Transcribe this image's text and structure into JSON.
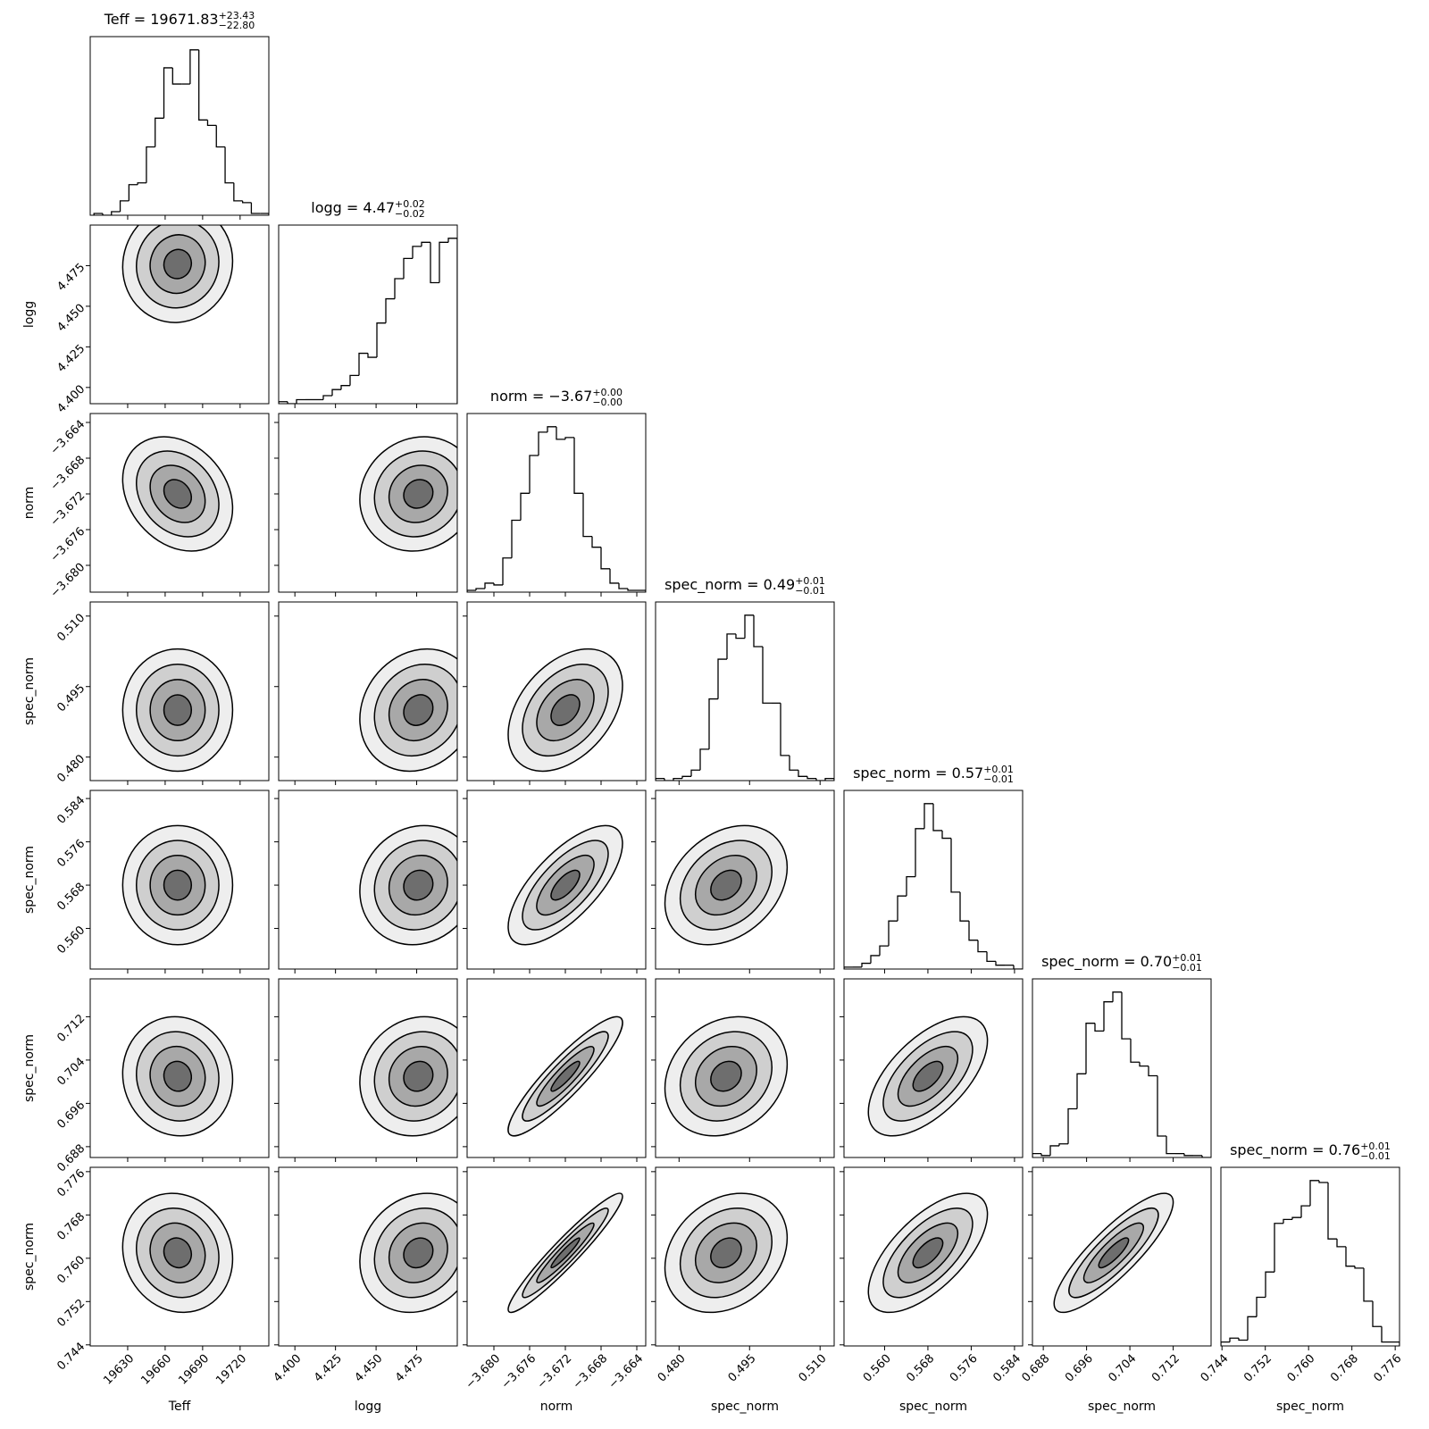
{
  "chart_data": {
    "type": "corner",
    "parameters": [
      {
        "label": "Teff",
        "title": {
          "text": "Teff = 19671.83",
          "upper": "+23.43",
          "lower": "−22.80"
        },
        "xlim": [
          19600,
          19743
        ],
        "ticks": [
          19630,
          19660,
          19690,
          19720
        ],
        "bins": [
          19603,
          19610,
          19617,
          19624,
          19631,
          19638,
          19645,
          19652,
          19659,
          19666,
          19673,
          19680,
          19687,
          19694,
          19701,
          19708,
          19715,
          19722,
          19729,
          19736,
          19743
        ],
        "counts": [
          1,
          0,
          2,
          8,
          17,
          18,
          38,
          54,
          82,
          73,
          73,
          92,
          53,
          50,
          38,
          18,
          8,
          7,
          1,
          1
        ],
        "center": 19670,
        "spread": 22
      },
      {
        "label": "logg",
        "title": {
          "text": "logg = 4.47",
          "upper": "+0.02",
          "lower": "−0.02"
        },
        "xlim": [
          4.39,
          4.5
        ],
        "ticks": [
          {
            "value": 4.4,
            "label": "4.400"
          },
          4.425,
          {
            "value": 4.45,
            "label": "4.450"
          },
          4.475
        ],
        "bins": [
          4.39,
          4.3955,
          4.401,
          4.4065,
          4.412,
          4.4175,
          4.423,
          4.4285,
          4.434,
          4.4395,
          4.445,
          4.4505,
          4.456,
          4.4615,
          4.467,
          4.4725,
          4.478,
          4.4835,
          4.489,
          4.4945,
          4.5
        ],
        "counts": [
          1,
          0,
          2,
          2,
          2,
          4,
          7,
          9,
          14,
          25,
          23,
          40,
          52,
          62,
          72,
          78,
          80,
          60,
          80,
          82
        ],
        "center": 4.476,
        "spread": 0.018
      },
      {
        "label": "norm",
        "title": {
          "text": "norm = −3.67",
          "upper": "+0.00",
          "lower": "−0.00"
        },
        "xlim": [
          -3.683,
          -3.663
        ],
        "ticks": [
          {
            "value": -3.68,
            "label": "−3.680"
          },
          {
            "value": -3.676,
            "label": "−3.676"
          },
          {
            "value": -3.672,
            "label": "−3.672"
          },
          {
            "value": -3.668,
            "label": "−3.668"
          },
          {
            "value": -3.664,
            "label": "−3.664"
          }
        ],
        "bins": [
          -3.683,
          -3.682,
          -3.681,
          -3.68,
          -3.679,
          -3.678,
          -3.677,
          -3.676,
          -3.675,
          -3.674,
          -3.673,
          -3.672,
          -3.671,
          -3.67,
          -3.669,
          -3.668,
          -3.667,
          -3.666,
          -3.665,
          -3.664,
          -3.663
        ],
        "counts": [
          1,
          2,
          5,
          4,
          19,
          40,
          55,
          76,
          89,
          92,
          85,
          86,
          55,
          31,
          25,
          13,
          5,
          2,
          1,
          1
        ],
        "center": -3.672,
        "spread": 0.0032
      },
      {
        "label": "spec_norm",
        "title": {
          "text": "spec_norm = 0.49",
          "upper": "+0.01",
          "lower": "−0.01"
        },
        "xlim": [
          0.475,
          0.513
        ],
        "ticks": [
          {
            "value": 0.48,
            "label": "0.480"
          },
          0.495,
          {
            "value": 0.51,
            "label": "0.510"
          }
        ],
        "bins": [
          0.475,
          0.4769,
          0.4788,
          0.4807,
          0.4826,
          0.4845,
          0.4864,
          0.4883,
          0.4902,
          0.4921,
          0.494,
          0.4959,
          0.4978,
          0.4997,
          0.5016,
          0.5035,
          0.5054,
          0.5073,
          0.5092,
          0.5111,
          0.513
        ],
        "counts": [
          1,
          0,
          1,
          2,
          5,
          15,
          39,
          58,
          70,
          68,
          79,
          64,
          37,
          37,
          12,
          5,
          2,
          1,
          0,
          1
        ],
        "center": 0.49,
        "spread": 0.0065
      },
      {
        "label": "spec_norm",
        "title": {
          "text": "spec_norm = 0.57",
          "upper": "+0.01",
          "lower": "−0.01"
        },
        "xlim": [
          0.5525,
          0.5855
        ],
        "ticks": [
          {
            "value": 0.56,
            "label": "0.560"
          },
          0.568,
          0.576,
          0.584
        ],
        "bins": [
          0.5525,
          0.55415,
          0.5558,
          0.55745,
          0.5591,
          0.56075,
          0.5624,
          0.56405,
          0.5657,
          0.56735,
          0.569,
          0.57065,
          0.5723,
          0.57395,
          0.5756,
          0.57725,
          0.5789,
          0.58055,
          0.5822,
          0.58385,
          0.5855
        ],
        "counts": [
          1,
          1,
          3,
          7,
          12,
          25,
          38,
          48,
          73,
          86,
          72,
          68,
          40,
          25,
          15,
          9,
          4,
          2,
          2,
          0
        ],
        "center": 0.568,
        "spread": 0.0055
      },
      {
        "label": "spec_norm",
        "title": {
          "text": "spec_norm = 0.70",
          "upper": "+0.01",
          "lower": "−0.01"
        },
        "xlim": [
          0.686,
          0.719
        ],
        "ticks": [
          0.688,
          0.696,
          0.704,
          0.712
        ],
        "bins": [
          0.686,
          0.68765,
          0.6893,
          0.69095,
          0.6926,
          0.69425,
          0.6959,
          0.69755,
          0.6992,
          0.70085,
          0.7025,
          0.70415,
          0.7058,
          0.70745,
          0.7091,
          0.71075,
          0.7124,
          0.71405,
          0.7157,
          0.71735,
          0.719
        ],
        "counts": [
          2,
          1,
          6,
          7,
          25,
          43,
          69,
          65,
          80,
          85,
          61,
          49,
          47,
          42,
          11,
          2,
          2,
          1,
          1,
          0
        ],
        "center": 0.701,
        "spread": 0.0055
      },
      {
        "label": "spec_norm",
        "title": {
          "text": "spec_norm = 0.76",
          "upper": "+0.01",
          "lower": "−0.01"
        },
        "xlim": [
          0.7438,
          0.7768
        ],
        "ticks": [
          0.744,
          0.752,
          {
            "value": 0.76,
            "label": "0.760"
          },
          0.768,
          0.776
        ],
        "bins": [
          0.7438,
          0.74545,
          0.7471,
          0.74875,
          0.7504,
          0.75205,
          0.7537,
          0.75535,
          0.757,
          0.75865,
          0.7603,
          0.76195,
          0.7636,
          0.76525,
          0.7669,
          0.76855,
          0.7702,
          0.77185,
          0.7735,
          0.77515,
          0.7768
        ],
        "counts": [
          2,
          4,
          3,
          15,
          25,
          38,
          63,
          65,
          66,
          72,
          85,
          84,
          55,
          51,
          41,
          40,
          23,
          10,
          2,
          2
        ],
        "center": 0.761,
        "spread": 0.0055
      }
    ],
    "correlations": [
      [
        0.05
      ],
      [
        -0.25,
        0.1
      ],
      [
        0.0,
        0.15,
        0.4
      ],
      [
        0.0,
        0.1,
        0.7,
        0.3
      ],
      [
        -0.05,
        0.1,
        0.9,
        0.2,
        0.6
      ],
      [
        -0.1,
        0.15,
        0.95,
        0.25,
        0.65,
        0.85
      ]
    ]
  }
}
